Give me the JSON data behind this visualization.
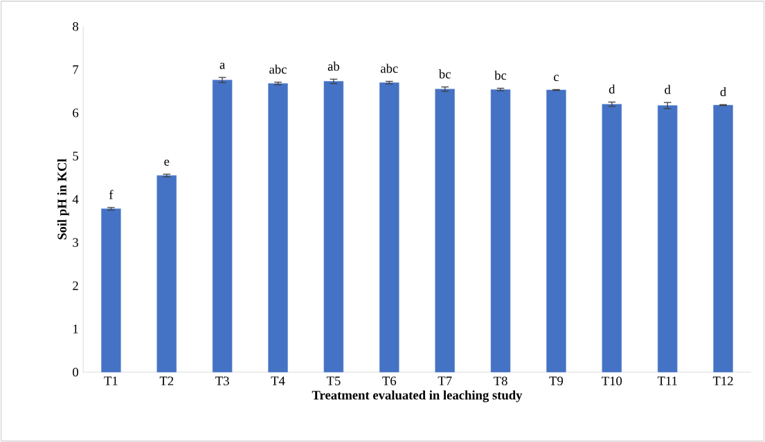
{
  "chart_data": {
    "type": "bar",
    "xlabel": "Treatment evaluated in leaching study",
    "ylabel": "Soil pH in KCl",
    "categories": [
      "T1",
      "T2",
      "T3",
      "T4",
      "T5",
      "T6",
      "T7",
      "T8",
      "T9",
      "T10",
      "T11",
      "T12"
    ],
    "values": [
      3.78,
      4.55,
      6.76,
      6.68,
      6.73,
      6.7,
      6.55,
      6.54,
      6.53,
      6.2,
      6.17,
      6.18
    ],
    "errors": [
      0.03,
      0.03,
      0.06,
      0.03,
      0.05,
      0.03,
      0.05,
      0.03,
      0.01,
      0.05,
      0.07,
      0.01
    ],
    "color": "#4472c4",
    "ylim": [
      0,
      8
    ],
    "yticks": [
      0,
      1,
      2,
      3,
      4,
      5,
      6,
      7,
      8
    ],
    "grid": false,
    "annotations": [
      {
        "text": "f",
        "x": "T1",
        "y": 3.78
      },
      {
        "text": "e",
        "x": "T2",
        "y": 4.55
      },
      {
        "text": "a",
        "x": "T3",
        "y": 6.76
      },
      {
        "text": "abc",
        "x": "T4",
        "y": 6.68
      },
      {
        "text": "ab",
        "x": "T5",
        "y": 6.73
      },
      {
        "text": "abc",
        "x": "T6",
        "y": 6.7
      },
      {
        "text": "bc",
        "x": "T7",
        "y": 6.55
      },
      {
        "text": "bc",
        "x": "T8",
        "y": 6.54
      },
      {
        "text": "c",
        "x": "T9",
        "y": 6.53
      },
      {
        "text": "d",
        "x": "T10",
        "y": 6.2
      },
      {
        "text": "d",
        "x": "T11",
        "y": 6.17
      },
      {
        "text": "d",
        "x": "T12",
        "y": 6.18
      }
    ]
  }
}
